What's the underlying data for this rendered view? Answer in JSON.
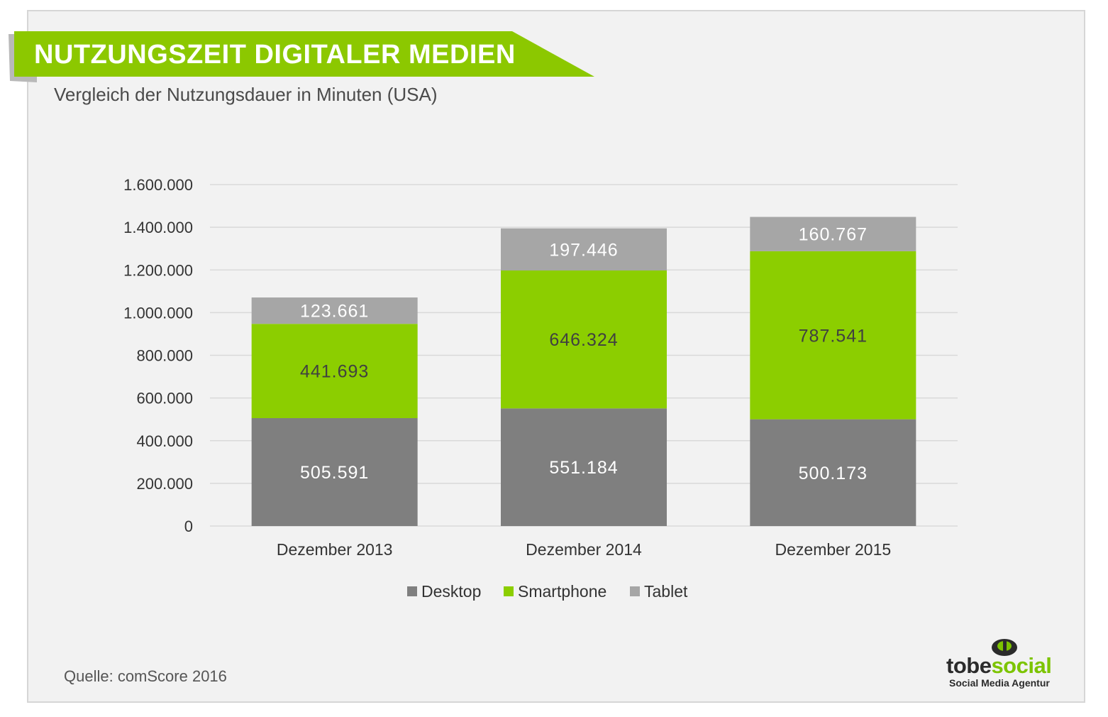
{
  "header": {
    "title": "NUTZUNGSZEIT DIGITALER MEDIEN",
    "subtitle": "Vergleich der Nutzungsdauer in Minuten (USA)"
  },
  "colors": {
    "banner": "#8cc800",
    "banner_shadow": "#b9b9b9",
    "desktop": "#7f7f7f",
    "smartphone": "#8cce00",
    "tablet": "#a6a6a6",
    "grid": "#d9d9d9",
    "axis_text": "#333333"
  },
  "chart_data": {
    "type": "bar",
    "stacked": true,
    "categories": [
      "Dezember 2013",
      "Dezember 2014",
      "Dezember 2015"
    ],
    "series": [
      {
        "name": "Desktop",
        "values": [
          505591,
          551184,
          500173
        ],
        "labels": [
          "505.591",
          "551.184",
          "500.173"
        ],
        "color": "#7f7f7f",
        "label_color": "#ffffff"
      },
      {
        "name": "Smartphone",
        "values": [
          441693,
          646324,
          787541
        ],
        "labels": [
          "441.693",
          "646.324",
          "787.541"
        ],
        "color": "#8cce00",
        "label_color": "#404040"
      },
      {
        "name": "Tablet",
        "values": [
          123661,
          197446,
          160767
        ],
        "labels": [
          "123.661",
          "197.446",
          "160.767"
        ],
        "color": "#a6a6a6",
        "label_color": "#ffffff"
      }
    ],
    "ylim": [
      0,
      1600000
    ],
    "yticks": [
      0,
      200000,
      400000,
      600000,
      800000,
      1000000,
      1200000,
      1400000,
      1600000
    ],
    "ytick_labels": [
      "0",
      "200.000",
      "400.000",
      "600.000",
      "800.000",
      "1.000.000",
      "1.200.000",
      "1.400.000",
      "1.600.000"
    ],
    "grid": true,
    "legend_position": "bottom"
  },
  "footer": {
    "source": "Quelle: comScore 2016",
    "logo_word_dark": "tobe",
    "logo_word_green": "social",
    "logo_tagline": "Social Media Agentur"
  }
}
